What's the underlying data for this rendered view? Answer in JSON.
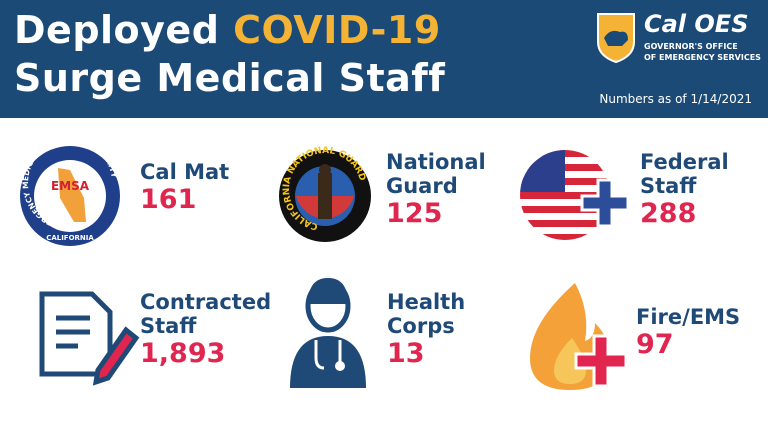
{
  "header": {
    "title_start": "Deployed",
    "title_highlight": "COVID-19",
    "title_line2": "Surge Medical Staff",
    "note": "Numbers as of 1/14/2021"
  },
  "logo": {
    "name": "Cal OES",
    "line1": "GOVERNOR'S OFFICE",
    "line2": "OF EMERGENCY SERVICES"
  },
  "badges": {
    "emsa_ring": "EMERGENCY MEDICAL SERVICES AUTHORITY",
    "emsa_center": "EMSA",
    "emsa_bottom": "CALIFORNIA",
    "guard_ring": "CALIFORNIA NATIONAL GUARD"
  },
  "items": [
    {
      "label": "Cal Mat",
      "value": "161"
    },
    {
      "label": "National Guard",
      "value": "125"
    },
    {
      "label": "Federal Staff",
      "value": "288"
    },
    {
      "label": "Contracted Staff",
      "value": "1,893"
    },
    {
      "label": "Health Corps",
      "value": "13"
    },
    {
      "label": "Fire/EMS",
      "value": "97"
    }
  ]
}
